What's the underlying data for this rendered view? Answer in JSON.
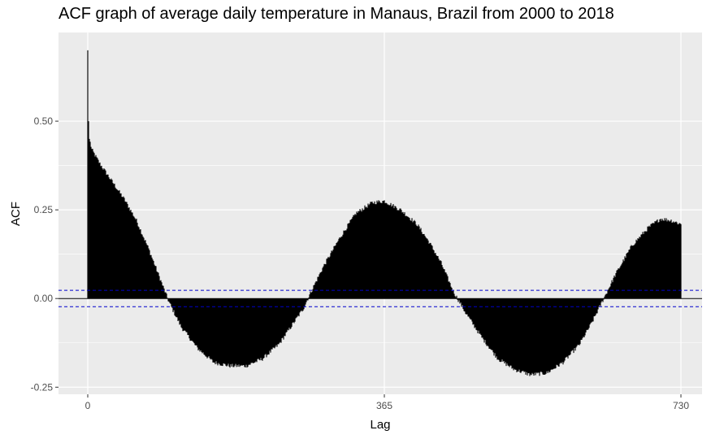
{
  "chart_data": {
    "type": "bar",
    "title": "ACF graph of average daily temperature in Manaus, Brazil from 2000 to 2018",
    "xlabel": "Lag",
    "ylabel": "ACF",
    "xlim": [
      -36,
      756
    ],
    "ylim": [
      -0.27,
      0.75
    ],
    "x_ticks": [
      0,
      365,
      730
    ],
    "x_tick_labels": [
      "0",
      "365",
      "730"
    ],
    "y_ticks": [
      -0.25,
      0,
      0.25,
      0.5
    ],
    "y_tick_labels": [
      "-0.25",
      "0.00",
      "0.25",
      "0.50"
    ],
    "grid": true,
    "legend": "none",
    "confidence_band": 0.023,
    "series": [
      {
        "lags_from": 0,
        "lags_to": 730,
        "values_at_lags": [
          [
            0,
            0.7
          ],
          [
            1,
            0.5
          ],
          [
            2,
            0.45
          ],
          [
            5,
            0.42
          ],
          [
            15,
            0.38
          ],
          [
            30,
            0.33
          ],
          [
            45,
            0.28
          ],
          [
            60,
            0.22
          ],
          [
            75,
            0.14
          ],
          [
            90,
            0.05
          ],
          [
            100,
            -0.01
          ],
          [
            115,
            -0.08
          ],
          [
            135,
            -0.14
          ],
          [
            155,
            -0.18
          ],
          [
            175,
            -0.19
          ],
          [
            195,
            -0.19
          ],
          [
            215,
            -0.17
          ],
          [
            235,
            -0.13
          ],
          [
            250,
            -0.08
          ],
          [
            265,
            -0.03
          ],
          [
            275,
            0.02
          ],
          [
            290,
            0.09
          ],
          [
            310,
            0.17
          ],
          [
            330,
            0.24
          ],
          [
            350,
            0.27
          ],
          [
            365,
            0.275
          ],
          [
            385,
            0.25
          ],
          [
            405,
            0.21
          ],
          [
            420,
            0.16
          ],
          [
            435,
            0.1
          ],
          [
            450,
            0.02
          ],
          [
            465,
            -0.04
          ],
          [
            485,
            -0.11
          ],
          [
            505,
            -0.17
          ],
          [
            525,
            -0.2
          ],
          [
            545,
            -0.215
          ],
          [
            565,
            -0.21
          ],
          [
            585,
            -0.18
          ],
          [
            605,
            -0.13
          ],
          [
            620,
            -0.07
          ],
          [
            635,
            0.0
          ],
          [
            650,
            0.07
          ],
          [
            670,
            0.15
          ],
          [
            690,
            0.2
          ],
          [
            705,
            0.225
          ],
          [
            718,
            0.22
          ],
          [
            730,
            0.21
          ]
        ]
      }
    ],
    "colors": {
      "bars": "#000000",
      "zero_line": "#000000",
      "confidence_lines": "#0000cc",
      "panel_background": "#ebebeb",
      "grid": "#ffffff"
    }
  }
}
